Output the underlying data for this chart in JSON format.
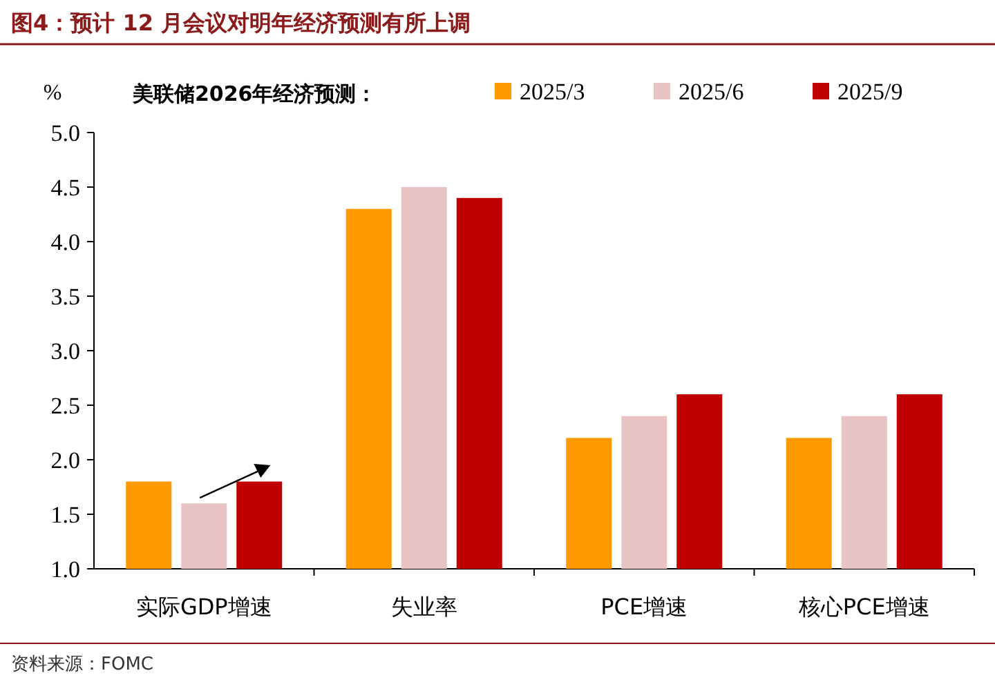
{
  "chart_data": {
    "type": "bar",
    "title": "图4：预计 12 月会议对明年经济预测有所上调",
    "subtitle": "美联储2026年经济预测：",
    "ylabel": "%",
    "categories": [
      "实际GDP增速",
      "失业率",
      "PCE增速",
      "核心PCE增速"
    ],
    "series": [
      {
        "name": "2025/3",
        "color": "#ff9900",
        "values": [
          1.8,
          4.3,
          2.2,
          2.2
        ]
      },
      {
        "name": "2025/6",
        "color": "#e8c4c4",
        "values": [
          1.6,
          4.5,
          2.4,
          2.4
        ]
      },
      {
        "name": "2025/9",
        "color": "#c00000",
        "values": [
          1.8,
          4.4,
          2.6,
          2.6
        ]
      }
    ],
    "ylim": [
      1,
      5
    ],
    "yticks": [
      {
        "value": 1,
        "label": "1.0"
      },
      {
        "value": 1.5,
        "label": "1.5"
      },
      {
        "value": 2,
        "label": "2.0"
      },
      {
        "value": 2.5,
        "label": "2.5"
      },
      {
        "value": 3,
        "label": "3.0"
      },
      {
        "value": 3.5,
        "label": "3.5"
      },
      {
        "value": 4,
        "label": "4.0"
      },
      {
        "value": 4.5,
        "label": "4.5"
      },
      {
        "value": 5,
        "label": "5.0"
      }
    ],
    "legend": "top right",
    "grid": false,
    "annotations": [
      "资料来源：FOMC"
    ]
  }
}
